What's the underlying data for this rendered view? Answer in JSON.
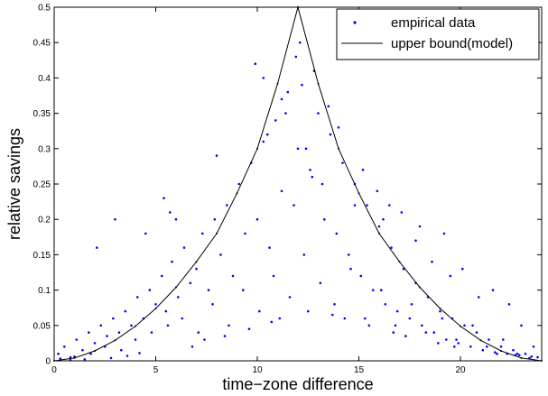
{
  "chart_data": {
    "type": "scatter",
    "xlabel": "time−zone difference",
    "ylabel": "relative savings",
    "xlim": [
      0,
      24
    ],
    "ylim": [
      0,
      0.5
    ],
    "x_ticks": [
      "0",
      "5",
      "10",
      "15",
      "20"
    ],
    "y_ticks": [
      "0",
      "0.05",
      "0.1",
      "0.15",
      "0.2",
      "0.25",
      "0.3",
      "0.35",
      "0.4",
      "0.45",
      "0.5"
    ],
    "grid": false,
    "legend_position": "top-right",
    "series": [
      {
        "name": "empirical data",
        "kind": "scatter",
        "color": "#0000ff",
        "x": [
          0.2,
          0.5,
          0.8,
          1.1,
          1.4,
          1.7,
          2.0,
          2.3,
          2.6,
          2.9,
          3.2,
          3.5,
          3.8,
          4.1,
          4.4,
          4.7,
          5.0,
          5.3,
          5.5,
          5.8,
          6.1,
          6.4,
          6.7,
          7.0,
          7.3,
          7.6,
          7.9,
          8.2,
          8.5,
          8.8,
          9.1,
          9.4,
          9.7,
          10.0,
          10.3,
          10.6,
          10.9,
          11.2,
          11.5,
          11.8,
          12.1,
          12.4,
          12.7,
          13.0,
          13.3,
          13.6,
          13.9,
          14.2,
          14.5,
          14.8,
          15.1,
          15.4,
          15.7,
          16.0,
          16.3,
          16.6,
          16.9,
          17.2,
          17.5,
          17.8,
          18.1,
          18.4,
          18.7,
          19.0,
          19.3,
          19.6,
          19.9,
          20.2,
          20.5,
          20.8,
          21.1,
          21.4,
          21.7,
          22.0,
          22.3,
          22.6,
          22.9,
          23.2,
          23.5,
          23.8,
          0.3,
          1.0,
          1.8,
          2.5,
          3.3,
          4.0,
          4.8,
          5.6,
          6.3,
          7.1,
          7.8,
          8.6,
          9.3,
          10.1,
          10.8,
          11.6,
          12.3,
          13.1,
          13.8,
          14.6,
          15.3,
          16.1,
          16.8,
          17.6,
          18.3,
          19.1,
          19.8,
          20.6,
          21.3,
          22.1,
          22.8,
          23.6,
          5.4,
          5.7,
          6.0,
          9.9,
          10.3,
          11.2,
          11.9,
          12.2,
          12.8,
          13.5,
          14.0,
          15.2,
          15.9,
          16.5,
          17.1,
          18.0,
          19.2,
          20.1,
          21.6,
          22.4,
          3.0,
          2.1,
          4.5,
          8.0,
          10.5,
          11.4,
          12.0,
          12.6,
          13.2,
          14.8,
          16.2,
          17.8,
          18.6,
          19.5,
          20.9,
          23.0,
          0.8,
          1.5,
          2.8,
          3.6,
          4.2,
          6.8,
          7.4,
          8.4,
          9.6,
          10.7,
          11.1,
          12.5,
          13.7,
          14.3,
          15.5,
          16.7,
          17.3,
          18.9,
          19.7,
          21.8,
          22.7,
          23.4
        ],
        "y": [
          0.01,
          0.02,
          0.005,
          0.03,
          0.015,
          0.04,
          0.025,
          0.05,
          0.035,
          0.06,
          0.04,
          0.07,
          0.05,
          0.09,
          0.06,
          0.1,
          0.08,
          0.12,
          0.07,
          0.14,
          0.09,
          0.16,
          0.11,
          0.13,
          0.18,
          0.1,
          0.2,
          0.15,
          0.22,
          0.12,
          0.25,
          0.18,
          0.28,
          0.2,
          0.31,
          0.16,
          0.34,
          0.24,
          0.38,
          0.22,
          0.45,
          0.3,
          0.26,
          0.35,
          0.2,
          0.32,
          0.18,
          0.28,
          0.15,
          0.25,
          0.12,
          0.22,
          0.1,
          0.19,
          0.08,
          0.16,
          0.07,
          0.13,
          0.06,
          0.11,
          0.05,
          0.09,
          0.04,
          0.07,
          0.03,
          0.06,
          0.025,
          0.05,
          0.02,
          0.04,
          0.015,
          0.03,
          0.012,
          0.02,
          0.01,
          0.015,
          0.008,
          0.01,
          0.006,
          0.005,
          0.003,
          0.006,
          0.01,
          0.02,
          0.015,
          0.03,
          0.04,
          0.05,
          0.06,
          0.04,
          0.08,
          0.05,
          0.1,
          0.07,
          0.12,
          0.09,
          0.15,
          0.11,
          0.08,
          0.13,
          0.06,
          0.1,
          0.05,
          0.08,
          0.04,
          0.06,
          0.03,
          0.05,
          0.02,
          0.03,
          0.01,
          0.02,
          0.23,
          0.21,
          0.2,
          0.42,
          0.4,
          0.37,
          0.43,
          0.39,
          0.41,
          0.36,
          0.33,
          0.27,
          0.24,
          0.22,
          0.21,
          0.19,
          0.18,
          0.13,
          0.1,
          0.08,
          0.2,
          0.16,
          0.18,
          0.29,
          0.32,
          0.35,
          0.3,
          0.27,
          0.25,
          0.22,
          0.2,
          0.17,
          0.14,
          0.12,
          0.09,
          0.05,
          0.001,
          0.002,
          0.004,
          0.007,
          0.011,
          0.02,
          0.03,
          0.035,
          0.045,
          0.055,
          0.06,
          0.07,
          0.065,
          0.06,
          0.05,
          0.04,
          0.035,
          0.025,
          0.02,
          0.01,
          0.008,
          0.004
        ]
      },
      {
        "name": "upper bound(model)",
        "kind": "line",
        "color": "#000000",
        "x": [
          0,
          1,
          2,
          3,
          4,
          5,
          6,
          7,
          8,
          9,
          10,
          11,
          12,
          13,
          14,
          15,
          16,
          17,
          18,
          19,
          20,
          21,
          22,
          23,
          24
        ],
        "y": [
          0,
          0.004,
          0.014,
          0.029,
          0.049,
          0.074,
          0.104,
          0.14,
          0.18,
          0.237,
          0.3,
          0.392,
          0.5,
          0.392,
          0.3,
          0.237,
          0.18,
          0.14,
          0.104,
          0.074,
          0.049,
          0.029,
          0.014,
          0.004,
          0
        ]
      }
    ]
  }
}
